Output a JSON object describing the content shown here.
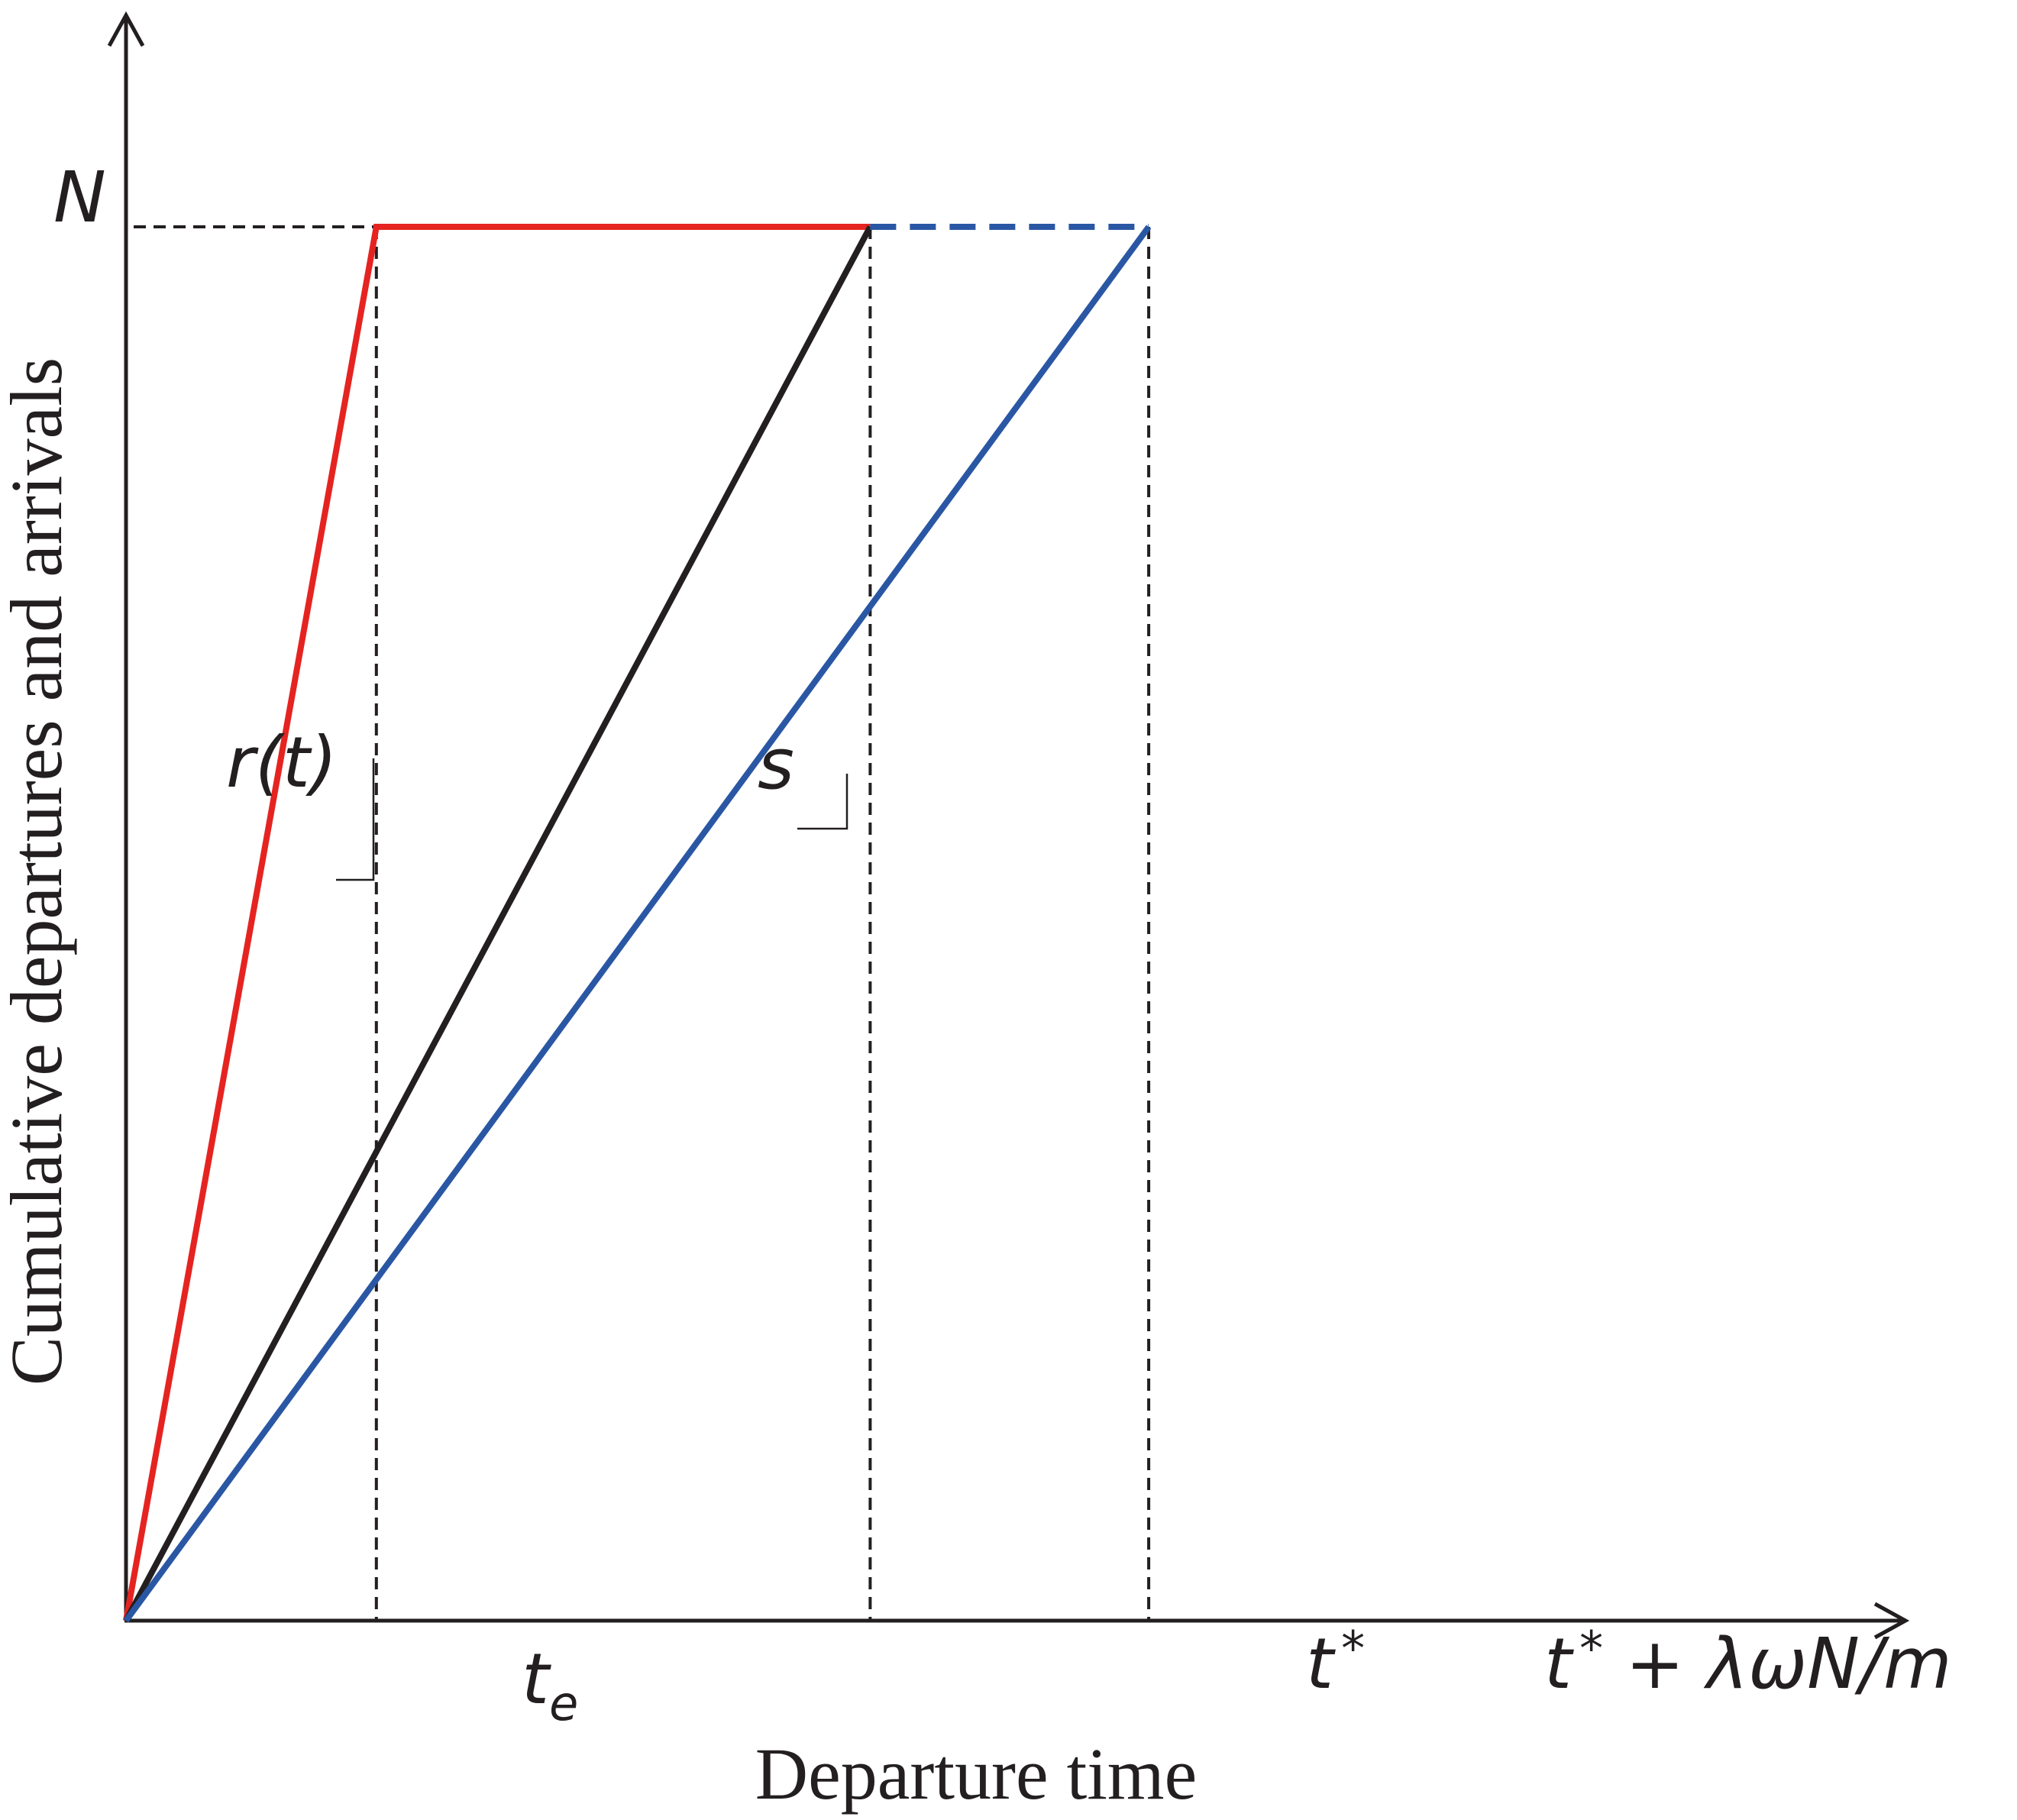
{
  "chart_data": {
    "type": "line",
    "xlabel": "Departure time",
    "ylabel": "Cumulative departures and arrivals",
    "xlim": [
      0,
      1.0
    ],
    "ylim": [
      0,
      1.0
    ],
    "x_ticks": [
      {
        "label_main": "t",
        "label_sub": "e",
        "x": 0.2256
      },
      {
        "label_main": "t",
        "label_sup": "*",
        "x": 0.6706
      },
      {
        "label_main": "t",
        "label_sup": "*",
        "label_rest": " + λωN/m",
        "x": 0.9216
      }
    ],
    "y_ticks": [
      {
        "label": "N",
        "y": 1.0
      }
    ],
    "series": [
      {
        "color": "#e52421",
        "style": "solid",
        "points": [
          [
            0,
            0
          ],
          [
            0.2256,
            1.0
          ],
          [
            0.6706,
            1.0
          ]
        ]
      },
      {
        "color": "#231f20",
        "style": "solid",
        "points": [
          [
            0,
            0
          ],
          [
            0.6706,
            1.0
          ]
        ]
      },
      {
        "color": "#2a57a4",
        "style": "solid",
        "points": [
          [
            0,
            0
          ],
          [
            0.9216,
            1.0
          ]
        ]
      },
      {
        "color": "#2a57a4",
        "style": "dashed",
        "points": [
          [
            0.6706,
            1.0
          ],
          [
            0.9216,
            1.0
          ]
        ]
      }
    ],
    "annotations": [
      {
        "label": "r(t)",
        "series": 0
      },
      {
        "label": "s",
        "series": 1
      }
    ],
    "grid": false,
    "legend": "none"
  }
}
